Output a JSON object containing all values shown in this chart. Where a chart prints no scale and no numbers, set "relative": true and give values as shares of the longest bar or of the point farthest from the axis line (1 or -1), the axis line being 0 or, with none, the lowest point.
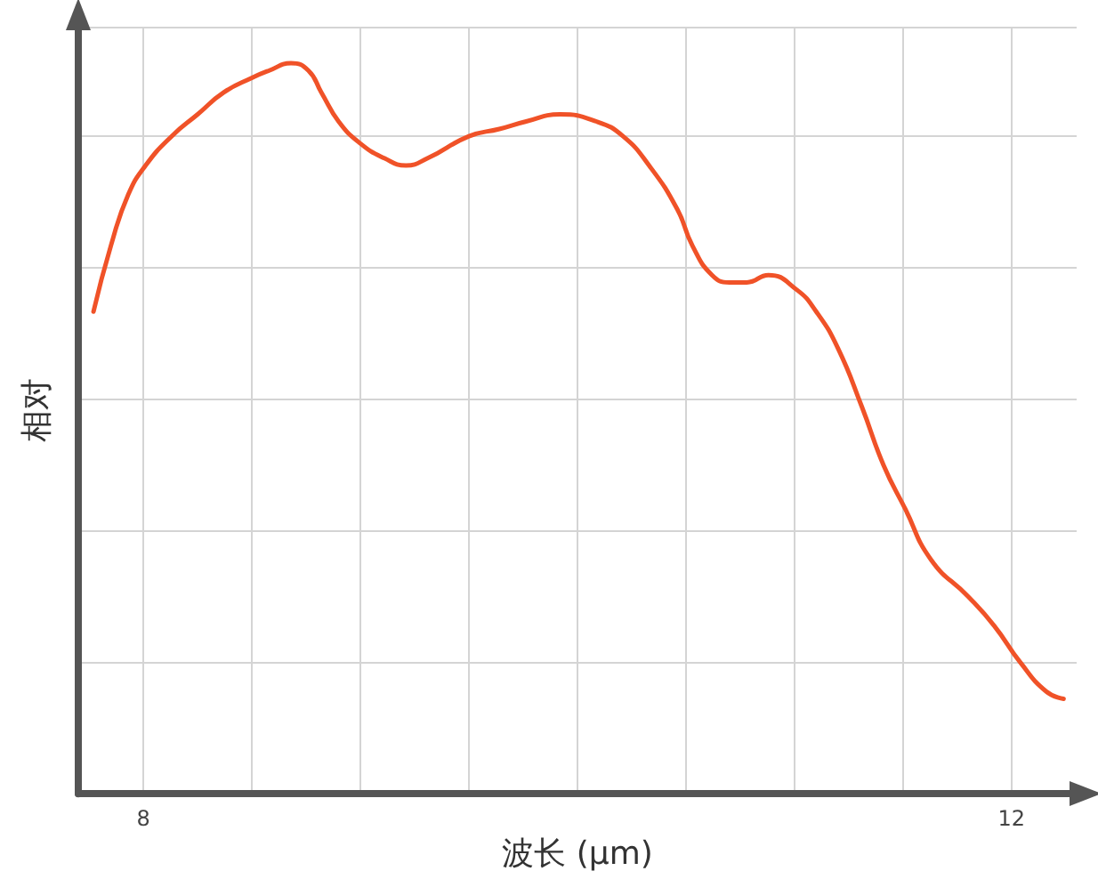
{
  "chart_data": {
    "type": "line",
    "xlabel": "波长 (µm)",
    "ylabel": "相对",
    "relative": true,
    "grid": true,
    "marker": "none",
    "line_style": "solid",
    "xlim": [
      7.7,
      12.3
    ],
    "xticks": [
      8,
      {
        "value": 8.5,
        "label": null
      },
      {
        "value": 9,
        "label": null
      },
      {
        "value": 9.5,
        "label": null
      },
      {
        "value": 10,
        "label": null
      },
      {
        "value": 10.5,
        "label": null
      },
      {
        "value": 11,
        "label": null
      },
      {
        "value": 11.5,
        "label": null
      },
      12
    ],
    "x": [
      7.77,
      7.85,
      7.93,
      8.01,
      8.13,
      8.25,
      8.37,
      8.5,
      8.58,
      8.68,
      8.76,
      8.82,
      8.9,
      9.0,
      9.11,
      9.21,
      9.31,
      9.5,
      9.64,
      9.76,
      9.92,
      10.09,
      10.21,
      10.33,
      10.46,
      10.53,
      10.62,
      10.7,
      10.78,
      10.88,
      11.01,
      11.1,
      11.2,
      11.31,
      11.41,
      11.51,
      11.63,
      11.8,
      11.92,
      12.04,
      12.16,
      12.24
    ],
    "series": [
      {
        "color": "#f05228",
        "values": [
          0.66,
          0.75,
          0.82,
          0.86,
          0.9,
          0.93,
          0.96,
          0.98,
          0.99,
          1.0,
          0.99,
          0.96,
          0.92,
          0.89,
          0.87,
          0.86,
          0.87,
          0.9,
          0.91,
          0.92,
          0.93,
          0.92,
          0.9,
          0.86,
          0.8,
          0.75,
          0.71,
          0.7,
          0.7,
          0.71,
          0.69,
          0.66,
          0.61,
          0.53,
          0.45,
          0.39,
          0.32,
          0.27,
          0.23,
          0.18,
          0.14,
          0.13
        ]
      }
    ]
  }
}
